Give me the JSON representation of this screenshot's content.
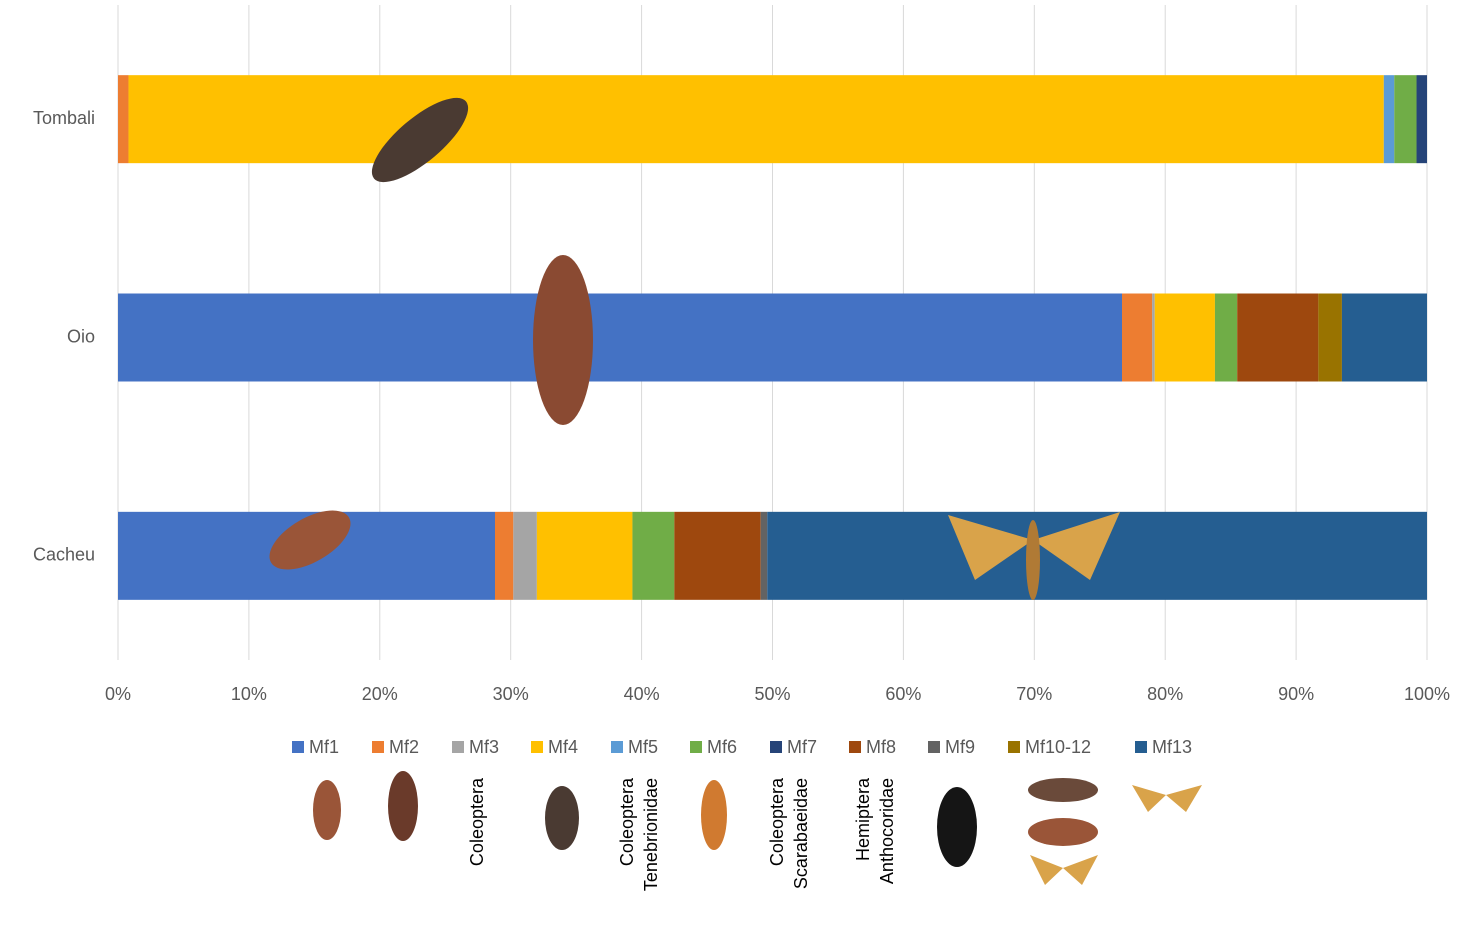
{
  "chart_data": {
    "type": "stacked_bar_horizontal",
    "categories": [
      "Tombali",
      "Oio",
      "Cacheu"
    ],
    "series": [
      {
        "name": "Mf1",
        "color": "#4472c4",
        "values": [
          0,
          76.7,
          28.8
        ]
      },
      {
        "name": "Mf2",
        "color": "#ed7d31",
        "values": [
          0.8,
          2.3,
          1.4
        ]
      },
      {
        "name": "Mf3",
        "color": "#a5a5a5",
        "values": [
          0,
          0.2,
          1.8
        ]
      },
      {
        "name": "Mf4",
        "color": "#ffc000",
        "values": [
          95.9,
          4.6,
          7.3
        ]
      },
      {
        "name": "Mf5",
        "color": "#5b9bd5",
        "values": [
          0.8,
          0,
          0
        ]
      },
      {
        "name": "Mf6",
        "color": "#70ad47",
        "values": [
          1.7,
          1.7,
          3.2
        ]
      },
      {
        "name": "Mf7",
        "color": "#264478",
        "values": [
          0.8,
          0,
          0
        ]
      },
      {
        "name": "Mf8",
        "color": "#9e480e",
        "values": [
          0,
          6.2,
          6.6
        ]
      },
      {
        "name": "Mf9",
        "color": "#636363",
        "values": [
          0,
          0,
          0.5
        ]
      },
      {
        "name": "Mf10-12",
        "color": "#997300",
        "values": [
          0,
          1.8,
          0
        ]
      },
      {
        "name": "Mf13",
        "color": "#255e91",
        "values": [
          0,
          6.5,
          50.4
        ]
      }
    ],
    "xlim": [
      0,
      100
    ],
    "xticks": [
      {
        "value": 0,
        "label": "0%"
      },
      {
        "value": 10,
        "label": "10%"
      },
      {
        "value": 20,
        "label": "20%"
      },
      {
        "value": 30,
        "label": "30%"
      },
      {
        "value": 40,
        "label": "40%"
      },
      {
        "value": 50,
        "label": "50%"
      },
      {
        "value": 60,
        "label": "60%"
      },
      {
        "value": 70,
        "label": "70%"
      },
      {
        "value": 80,
        "label": "80%"
      },
      {
        "value": 90,
        "label": "90%"
      },
      {
        "value": 100,
        "label": "100%"
      }
    ],
    "grid": true,
    "legend": "bottom",
    "image_captions": [
      [
        "Coleoptera"
      ],
      [
        "Coleoptera",
        "Tenebrionidae"
      ],
      [
        "Coleoptera",
        "Scarabaeidae"
      ],
      [
        "Hemiptera",
        "Anthocoridae"
      ]
    ]
  }
}
